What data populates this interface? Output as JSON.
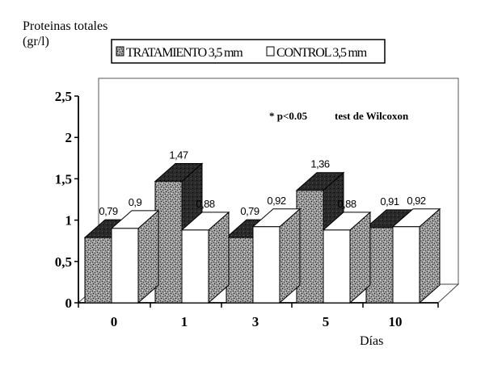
{
  "chart_data": {
    "type": "bar",
    "ylabel_line1": "Proteinas totales",
    "ylabel_line2": "(gr/l)",
    "xlabel": "Días",
    "annotation_sig": "* p<0.05",
    "annotation_test": "test de Wilcoxon",
    "categories": [
      "0",
      "1",
      "3",
      "5",
      "10"
    ],
    "y_ticks": [
      "0",
      "0,5",
      "1",
      "1,5",
      "2",
      "2,5"
    ],
    "ylim": [
      0,
      2.5
    ],
    "legend_position": "top",
    "series": [
      {
        "name": "TRATAMIENTO 3,5 mm",
        "values": [
          0.79,
          1.47,
          0.79,
          1.36,
          0.91
        ],
        "labels": [
          "0,79",
          "1,47",
          "0,79",
          "1,36",
          "0,91"
        ],
        "fill": "#8a8a8a"
      },
      {
        "name": "CONTROL 3,5 mm",
        "values": [
          0.9,
          0.88,
          0.92,
          0.88,
          0.92
        ],
        "labels": [
          "0,9",
          "0,88",
          "0,92",
          "0,88",
          "0,92"
        ],
        "fill": "#ffffff"
      }
    ],
    "grid": false,
    "three_d": true
  }
}
